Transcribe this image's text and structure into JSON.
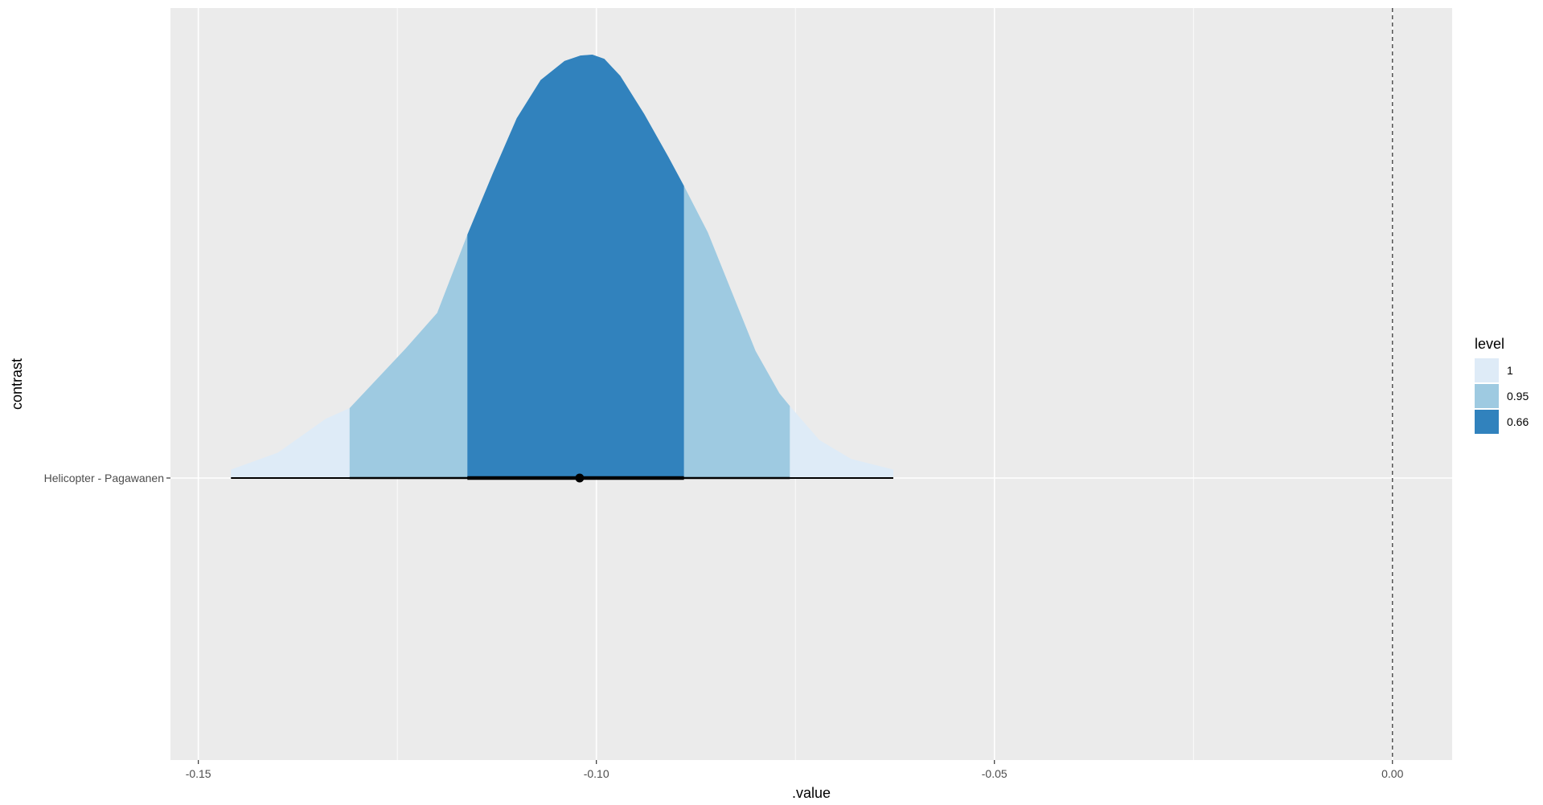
{
  "chart_data": {
    "type": "area",
    "title": "",
    "xlabel": ".value",
    "ylabel": "contrast",
    "xlim": [
      -0.1535,
      0.0075
    ],
    "x_ticks": [
      -0.15,
      -0.1,
      -0.05,
      0.0
    ],
    "x_tick_labels": [
      "-0.15",
      "-0.10",
      "-0.05",
      "0.00"
    ],
    "categories": [
      "Helicopter - Pagawanen"
    ],
    "grid": true,
    "reference_line": {
      "x": 0.0,
      "style": "dashed"
    },
    "legend": {
      "title": "level",
      "position": "right",
      "entries": [
        {
          "label": "1",
          "color": "#deebf7"
        },
        {
          "label": "0.95",
          "color": "#9ecae1"
        },
        {
          "label": "0.66",
          "color": "#3182bd"
        }
      ]
    },
    "series": [
      {
        "category": "Helicopter - Pagawanen",
        "point_estimate": -0.1021,
        "mode": -0.1005,
        "intervals": [
          {
            "level": "1",
            "lower": -0.1459,
            "upper": -0.0627
          },
          {
            "level": "0.95",
            "lower": -0.131,
            "upper": -0.0757
          },
          {
            "level": "0.66",
            "lower": -0.1162,
            "upper": -0.089
          }
        ],
        "density": {
          "x": [
            -0.1459,
            -0.14,
            -0.134,
            -0.131,
            -0.128,
            -0.124,
            -0.12,
            -0.1162,
            -0.113,
            -0.11,
            -0.107,
            -0.104,
            -0.102,
            -0.1005,
            -0.099,
            -0.097,
            -0.094,
            -0.091,
            -0.089,
            -0.086,
            -0.083,
            -0.08,
            -0.077,
            -0.0757,
            -0.072,
            -0.068,
            -0.0627
          ],
          "y": [
            0.02,
            0.06,
            0.14,
            0.165,
            0.225,
            0.305,
            0.39,
            0.575,
            0.72,
            0.85,
            0.94,
            0.985,
            0.998,
            1.0,
            0.99,
            0.95,
            0.86,
            0.76,
            0.69,
            0.58,
            0.44,
            0.3,
            0.2,
            0.17,
            0.09,
            0.045,
            0.02
          ]
        }
      }
    ]
  }
}
